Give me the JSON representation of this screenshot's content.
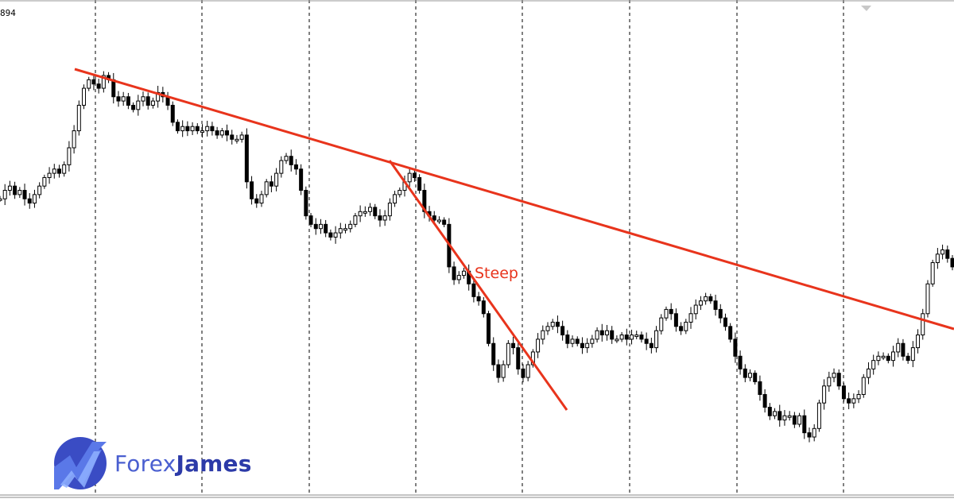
{
  "chart_data": {
    "type": "candlestick",
    "price_label": "894",
    "annotation": "Steep",
    "grid": "vertical dashed",
    "colors": {
      "candle": "#000000",
      "trendline": "#e8341c",
      "brand_primary": "#4a5fd0",
      "brand_dark": "#2c3aa8"
    },
    "series": [
      {
        "values": [
          0.64,
          0.66,
          0.67,
          0.65,
          0.66,
          0.64,
          0.63,
          0.65,
          0.67,
          0.69,
          0.7,
          0.71,
          0.7,
          0.72,
          0.76,
          0.8,
          0.86,
          0.9,
          0.92,
          0.91,
          0.9,
          0.93,
          0.92,
          0.88,
          0.87,
          0.88,
          0.86,
          0.85,
          0.87,
          0.88,
          0.86,
          0.87,
          0.89,
          0.88,
          0.86,
          0.82,
          0.8,
          0.81,
          0.8,
          0.81,
          0.8,
          0.8,
          0.81,
          0.8,
          0.79,
          0.8,
          0.79,
          0.78,
          0.78,
          0.79,
          0.68,
          0.64,
          0.63,
          0.65,
          0.68,
          0.67,
          0.7,
          0.73,
          0.74,
          0.72,
          0.71,
          0.66,
          0.6,
          0.58,
          0.57,
          0.58,
          0.56,
          0.55,
          0.56,
          0.57,
          0.57,
          0.58,
          0.6,
          0.61,
          0.61,
          0.62,
          0.6,
          0.59,
          0.6,
          0.63,
          0.65,
          0.66,
          0.68,
          0.7,
          0.69,
          0.66,
          0.61,
          0.6,
          0.59,
          0.59,
          0.58,
          0.48,
          0.45,
          0.46,
          0.47,
          0.44,
          0.41,
          0.4,
          0.37,
          0.3,
          0.25,
          0.22,
          0.25,
          0.3,
          0.29,
          0.24,
          0.22,
          0.25,
          0.28,
          0.31,
          0.33,
          0.34,
          0.35,
          0.34,
          0.32,
          0.3,
          0.31,
          0.3,
          0.29,
          0.3,
          0.31,
          0.33,
          0.32,
          0.33,
          0.31,
          0.31,
          0.32,
          0.31,
          0.32,
          0.32,
          0.31,
          0.3,
          0.29,
          0.33,
          0.36,
          0.38,
          0.37,
          0.34,
          0.33,
          0.35,
          0.37,
          0.39,
          0.4,
          0.41,
          0.4,
          0.38,
          0.36,
          0.34,
          0.31,
          0.27,
          0.24,
          0.22,
          0.23,
          0.21,
          0.18,
          0.15,
          0.13,
          0.14,
          0.12,
          0.13,
          0.13,
          0.11,
          0.13,
          0.09,
          0.08,
          0.1,
          0.16,
          0.2,
          0.22,
          0.23,
          0.2,
          0.17,
          0.16,
          0.17,
          0.18,
          0.22,
          0.24,
          0.26,
          0.27,
          0.27,
          0.26,
          0.28,
          0.3,
          0.27,
          0.26,
          0.29,
          0.32,
          0.37,
          0.44,
          0.49,
          0.51,
          0.52,
          0.5,
          0.48
        ]
      }
    ]
  },
  "brand": {
    "name_part1": "Forex",
    "name_part2": "James"
  }
}
